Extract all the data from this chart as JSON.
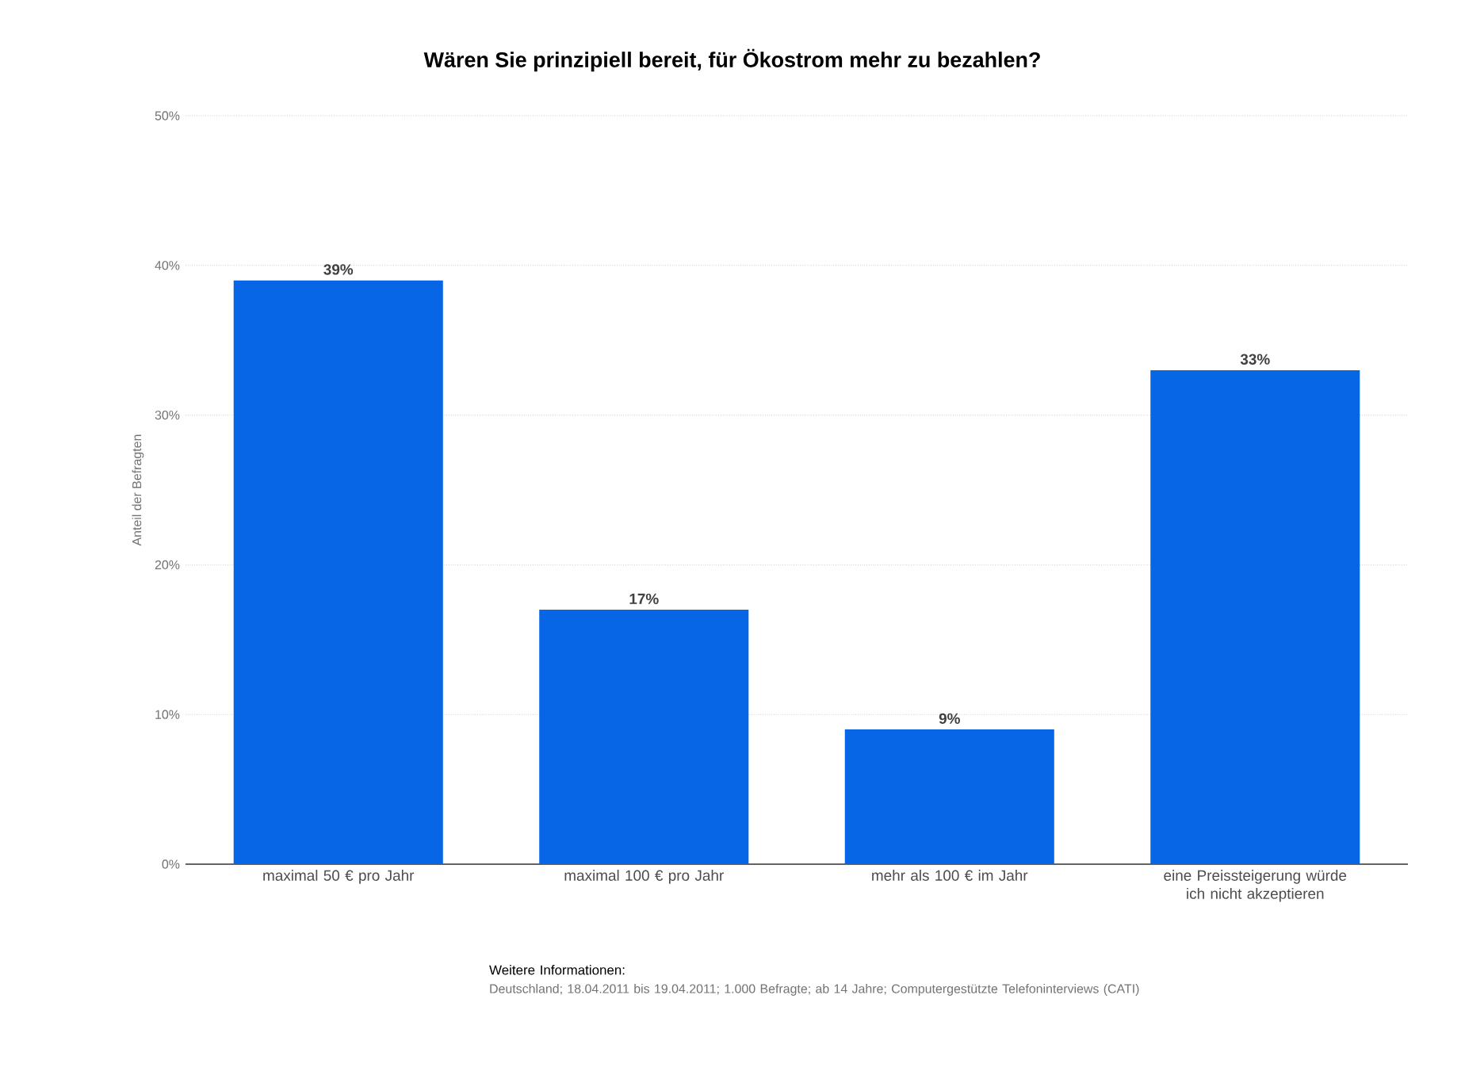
{
  "chart_data": {
    "type": "bar",
    "title": "Wären Sie prinzipiell bereit, für Ökostrom mehr zu bezahlen?",
    "ylabel": "Anteil der Befragten",
    "categories": [
      "maximal 50 € pro Jahr",
      "maximal 100 € pro Jahr",
      "mehr als 100 € im Jahr",
      "eine Preissteigerung würde ich nicht akzeptieren"
    ],
    "values": [
      39,
      17,
      9,
      33
    ],
    "value_labels": [
      "39%",
      "17%",
      "9%",
      "33%"
    ],
    "color": "#0766e6",
    "ylim": [
      0,
      50
    ],
    "yticks": [
      {
        "value": 0,
        "label": "0%"
      },
      {
        "value": 10,
        "label": "10%"
      },
      {
        "value": 20,
        "label": "20%"
      },
      {
        "value": 30,
        "label": "30%"
      },
      {
        "value": 40,
        "label": "40%"
      },
      {
        "value": 50,
        "label": "50%"
      }
    ],
    "grid": "y",
    "annotations": [
      "Weitere Informationen:",
      "Deutschland; 18.04.2011 bis 19.04.2011; 1.000 Befragte; ab 14 Jahre; Computergestützte Telefoninterviews (CATI)"
    ]
  }
}
